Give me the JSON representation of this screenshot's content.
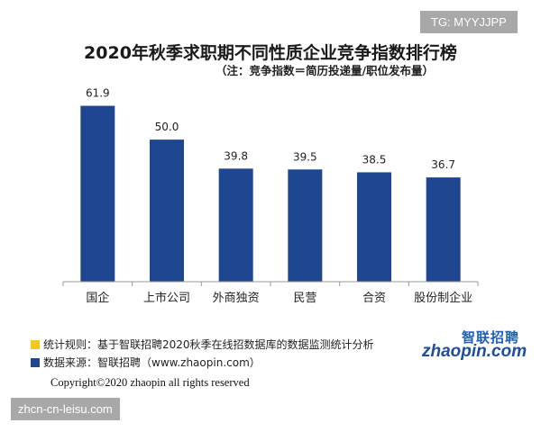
{
  "watermarks": {
    "top_right": "TG: MYYJJPP",
    "bottom_left": "zhcn-cn-leisu.com"
  },
  "chart_data": {
    "type": "bar",
    "title": "2020年秋季求职期不同性质企业竞争指数排行榜",
    "subtitle": "（注：竞争指数＝简历投递量/职位发布量）",
    "categories": [
      "国企",
      "上市公司",
      "外商独资",
      "民营",
      "合资",
      "股份制企业"
    ],
    "values": [
      61.9,
      50.0,
      39.8,
      39.5,
      38.5,
      36.7
    ],
    "value_labels": [
      "61.9",
      "50.0",
      "39.8",
      "39.5",
      "38.5",
      "36.7"
    ],
    "ylim": [
      0,
      70
    ],
    "xlabel": "",
    "ylabel": "",
    "grid": false,
    "bar_color": "#1f4690"
  },
  "legend": [
    {
      "color": "#f2c81a",
      "text": "统计规则：基于智联招聘2020秋季在线招数据库的数据监测统计分析"
    },
    {
      "color": "#1f4690",
      "text": "数据来源：智联招聘（www.zhaopin.com）"
    }
  ],
  "brand": {
    "cn": "智联招聘",
    "en": "zhaopin.com"
  },
  "copyright": "Copyright©2020 zhaopin all rights reserved"
}
